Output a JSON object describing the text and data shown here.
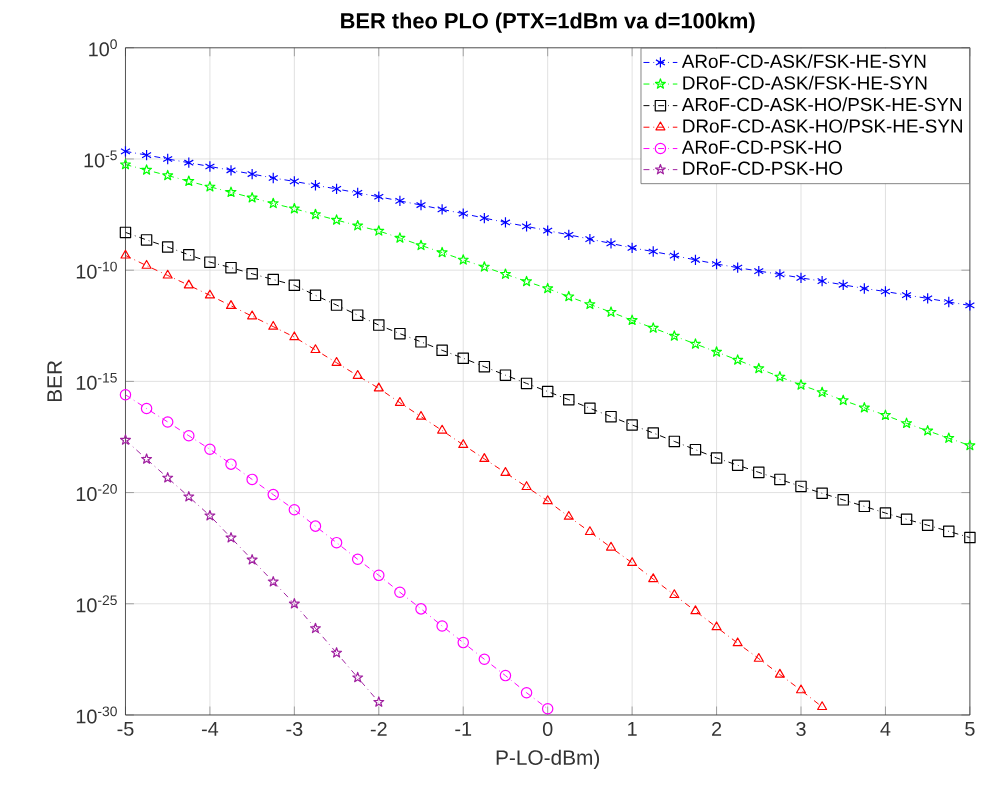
{
  "chart_data": {
    "type": "line",
    "title": "BER theo PLO (PTX=1dBm va d=100km)",
    "xlabel": "P-LO-dBm)",
    "ylabel": "BER",
    "x": [
      -5,
      -4.75,
      -4.5,
      -4.25,
      -4,
      -3.75,
      -3.5,
      -3.25,
      -3,
      -2.75,
      -2.5,
      -2.25,
      -2,
      -1.75,
      -1.5,
      -1.25,
      -1,
      -0.75,
      -0.5,
      -0.25,
      0,
      0.25,
      0.5,
      0.75,
      1,
      1.25,
      1.5,
      1.75,
      2,
      2.25,
      2.5,
      2.75,
      3,
      3.25,
      3.5,
      3.75,
      4,
      4.25,
      4.5,
      4.75,
      5
    ],
    "series": [
      {
        "name": "ARoF-CD-ASK/FSK-HE-SYN",
        "color": "#0000ff",
        "marker": "cross",
        "values": [
          2.2e-05,
          1.5e-05,
          1e-05,
          6.8e-06,
          4.6e-06,
          3.1e-06,
          2.1e-06,
          1.4e-06,
          9.8e-07,
          6.6e-07,
          4.5e-07,
          3e-07,
          2e-07,
          1.3e-07,
          8.5e-08,
          5.4e-08,
          3.5e-08,
          2.2e-08,
          1.4e-08,
          9.3e-09,
          6e-09,
          3.9e-09,
          2.5e-09,
          1.6e-09,
          1e-09,
          6.9e-10,
          4.5e-10,
          2.9e-10,
          1.9e-10,
          1.3e-10,
          9.1e-11,
          6.5e-11,
          4.5e-11,
          3.2e-11,
          2.2e-11,
          1.5e-11,
          1.1e-11,
          7.6e-12,
          5.4e-12,
          3.7e-12,
          2.6e-12
        ]
      },
      {
        "name": "DRoF-CD-ASK/FSK-HE-SYN",
        "color": "#00ff00",
        "marker": "star",
        "values": [
          5.6e-06,
          3.2e-06,
          1.8e-06,
          1e-06,
          5.6e-07,
          3.2e-07,
          1.8e-07,
          1e-07,
          5.8e-08,
          3.2e-08,
          1.8e-08,
          1e-08,
          5.8e-09,
          2.8e-09,
          1.3e-09,
          6.2e-10,
          2.9e-10,
          1.4e-10,
          6.6e-11,
          3.1e-11,
          1.5e-11,
          6.5e-12,
          2.9e-12,
          1.3e-12,
          5.6e-13,
          2.5e-13,
          1.1e-13,
          4.8e-14,
          2.1e-14,
          9.1e-15,
          3.8e-15,
          1.6e-15,
          6.9e-16,
          3.2e-16,
          1.4e-16,
          6.5e-17,
          3e-17,
          1.3e-17,
          6e-18,
          2.8e-18,
          1.3e-18
        ]
      },
      {
        "name": "ARoF-CD-ASK-HO/PSK-HE-SYN",
        "color": "#000000",
        "marker": "square",
        "values": [
          5e-09,
          2.3e-09,
          1.1e-09,
          4.9e-10,
          2.3e-10,
          1.3e-10,
          6.9e-11,
          3.8e-11,
          2.1e-11,
          7.4e-12,
          2.7e-12,
          9.5e-13,
          3.4e-13,
          1.4e-13,
          6e-14,
          2.5e-14,
          1.1e-14,
          4.6e-15,
          1.9e-15,
          8.1e-16,
          3.5e-16,
          1.5e-16,
          6.2e-17,
          2.6e-17,
          1.1e-17,
          4.8e-18,
          2e-18,
          8.5e-19,
          3.6e-19,
          1.7e-19,
          8.1e-20,
          3.9e-20,
          1.9e-20,
          9.3e-21,
          4.7e-21,
          2.4e-21,
          1.2e-21,
          6.3e-22,
          3.4e-22,
          1.8e-22,
          9.5e-23
        ]
      },
      {
        "name": "DRoF-CD-ASK-HO/PSK-HE-SYN",
        "color": "#ff0000",
        "marker": "triangle",
        "x": [
          -5,
          -4.75,
          -4.5,
          -4.25,
          -4,
          -3.75,
          -3.5,
          -3.25,
          -3,
          -2.75,
          -2.5,
          -2.25,
          -2,
          -1.75,
          -1.5,
          -1.25,
          -1,
          -0.75,
          -0.5,
          -0.25,
          0,
          0.25,
          0.5,
          0.75,
          1,
          1.25,
          1.5,
          1.75,
          2,
          2.25,
          2.5,
          2.75,
          3,
          3.25
        ],
        "values": [
          4.6e-10,
          1.6e-10,
          5.8e-11,
          2.1e-11,
          7.4e-12,
          2.5e-12,
          8.5e-13,
          2.9e-13,
          9.8e-14,
          2.6e-14,
          6.9e-15,
          1.8e-15,
          4.9e-16,
          1.1e-16,
          2.6e-17,
          6.2e-18,
          1.4e-18,
          3.3e-19,
          7.8e-20,
          1.8e-20,
          4.2e-21,
          8.3e-22,
          1.7e-22,
          3.4e-23,
          6.9e-24,
          1.3e-24,
          2.5e-25,
          4.7e-26,
          8.9e-27,
          1.7e-27,
          3.4e-28,
          6.6e-29,
          1.3e-29,
          2.3e-30
        ]
      },
      {
        "name": "ARoF-CD-PSK-HO",
        "color": "#ff00ff",
        "marker": "circle",
        "x": [
          -5,
          -4.75,
          -4.5,
          -4.25,
          -4,
          -3.75,
          -3.5,
          -3.25,
          -3,
          -2.75,
          -2.5,
          -2.25,
          -2,
          -1.75,
          -1.5,
          -1.25,
          -1,
          -0.75,
          -0.5,
          -0.25,
          0
        ],
        "values": [
          2.5e-16,
          6e-17,
          1.5e-17,
          3.6e-18,
          8.9e-19,
          1.9e-19,
          3.9e-20,
          8.1e-21,
          1.7e-21,
          3.1e-22,
          5.6e-23,
          1e-23,
          1.9e-24,
          3.3e-25,
          5.9e-26,
          1e-26,
          1.8e-27,
          3.2e-28,
          5.9e-29,
          1e-29,
          1.9e-30
        ]
      },
      {
        "name": "DRoF-CD-PSK-HO",
        "color": "#a020a0",
        "marker": "star",
        "x": [
          -5,
          -4.75,
          -4.5,
          -4.25,
          -4,
          -3.75,
          -3.5,
          -3.25,
          -3,
          -2.75,
          -2.5,
          -2.25,
          -2
        ],
        "values": [
          2.3e-18,
          3.2e-19,
          4.6e-20,
          6.5e-21,
          9.1e-22,
          9.3e-23,
          9.5e-24,
          9.8e-25,
          1e-25,
          7.8e-27,
          6.2e-28,
          4.8e-29,
          3.8e-30
        ]
      }
    ],
    "xlim": [
      -5,
      5
    ],
    "ylim": [
      1e-30,
      1
    ],
    "xticks": [
      -5,
      -4,
      -3,
      -2,
      -1,
      0,
      1,
      2,
      3,
      4,
      5
    ],
    "yticks": [
      {
        "value": 1e-30,
        "label": "10$^{-30}$"
      },
      {
        "value": 1e-25,
        "label": "10$^{-25}$"
      },
      {
        "value": 1e-20,
        "label": "10$^{-20}$"
      },
      {
        "value": 1e-15,
        "label": "10$^{-15}$"
      },
      {
        "value": 1e-10,
        "label": "10$^{-10}$"
      },
      {
        "value": 1e-05,
        "label": "10$^{-5}$"
      },
      {
        "value": 1,
        "label": "10$^{0}$"
      }
    ],
    "log": true,
    "grid": true,
    "legend": "top right",
    "line_style": "dashed"
  }
}
